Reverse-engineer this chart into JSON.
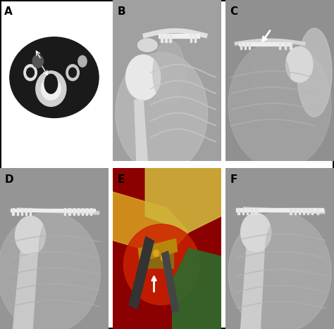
{
  "figure_title": "",
  "panels": [
    {
      "label": "A",
      "row": 0,
      "col": 0,
      "bg_color": "#000000",
      "image_type": "ct_scan"
    },
    {
      "label": "B",
      "row": 0,
      "col": 1,
      "bg_color": "#888888",
      "image_type": "xray_shoulder"
    },
    {
      "label": "C",
      "row": 0,
      "col": 2,
      "bg_color": "#888888",
      "image_type": "xray_shoulder_arrow"
    },
    {
      "label": "D",
      "row": 1,
      "col": 0,
      "bg_color": "#888888",
      "image_type": "xray_shoulder2"
    },
    {
      "label": "E",
      "row": 1,
      "col": 1,
      "bg_color": "#cc4400",
      "image_type": "surgical_photo"
    },
    {
      "label": "F",
      "row": 1,
      "col": 2,
      "bg_color": "#888888",
      "image_type": "xray_shoulder3"
    }
  ],
  "label_color": "#000000",
  "label_fontsize": 11,
  "label_fontweight": "bold",
  "fig_bg_color": "#ffffff",
  "outer_border_color": "#000000",
  "panel_border_color": "#ffffff",
  "border_lw": 1.5,
  "figsize": [
    4.74,
    4.68
  ],
  "dpi": 100,
  "nrows": 2,
  "ncols": 3,
  "hspace": 0.04,
  "wspace": 0.04
}
